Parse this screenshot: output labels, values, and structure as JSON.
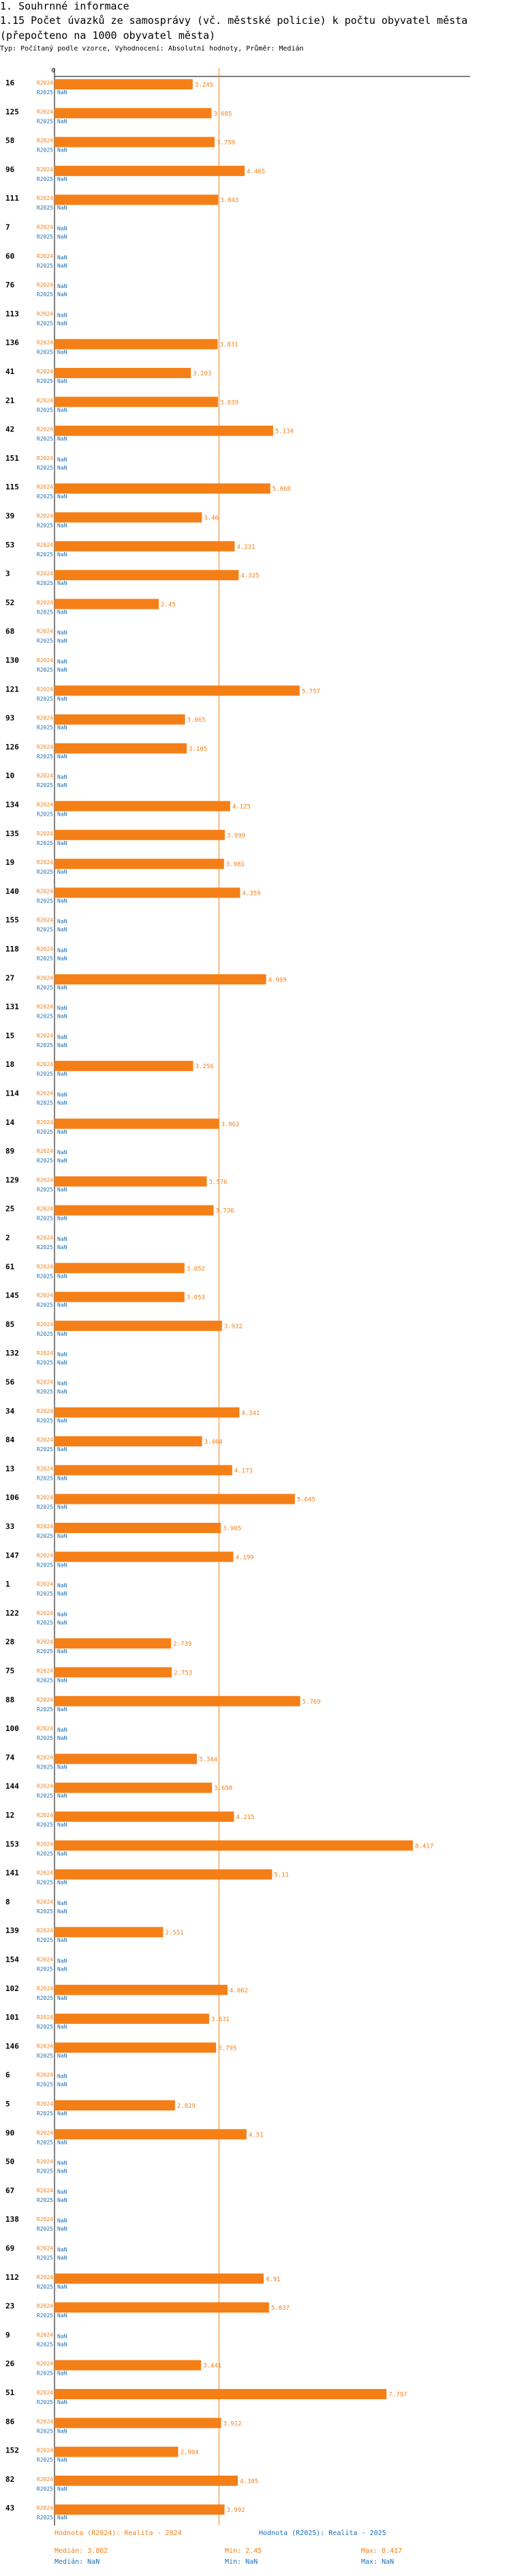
{
  "header": {
    "section": "1. Souhrnné informace",
    "title": "1.15 Počet úvazků ze samosprávy (vč. městské policie) k počtu obyvatel města (přepočteno na 1000 obyvatel města)",
    "subtitle": "Typ: Počítaný podle vzorce, Vyhodnocení: Absolutní hodnoty, Průměr: Medián"
  },
  "colors": {
    "bar": "#f57f17",
    "nan": "#1f6fb5",
    "axis": "#000000",
    "median_line": "#f57f17"
  },
  "chart_data": {
    "type": "bar",
    "orientation": "horizontal",
    "series": [
      {
        "name": "R2024",
        "color": "#f57f17"
      },
      {
        "name": "R2025",
        "color": "#1f6fb5"
      }
    ],
    "series_labels": {
      "r2024": "R2024",
      "r2025": "R2025"
    },
    "nan_label": "NaN",
    "median_2024": 3.862,
    "xlim": [
      0,
      9.6
    ],
    "rows": [
      {
        "id": "16",
        "v2024": 3.245
      },
      {
        "id": "125",
        "v2024": 3.685
      },
      {
        "id": "58",
        "v2024": 3.759
      },
      {
        "id": "96",
        "v2024": 4.465
      },
      {
        "id": "111",
        "v2024": 3.843
      },
      {
        "id": "7",
        "v2024": null
      },
      {
        "id": "60",
        "v2024": null
      },
      {
        "id": "76",
        "v2024": null
      },
      {
        "id": "113",
        "v2024": null
      },
      {
        "id": "136",
        "v2024": 3.831
      },
      {
        "id": "41",
        "v2024": 3.203
      },
      {
        "id": "21",
        "v2024": 3.839
      },
      {
        "id": "42",
        "v2024": 5.134
      },
      {
        "id": "151",
        "v2024": null
      },
      {
        "id": "115",
        "v2024": 5.068
      },
      {
        "id": "39",
        "v2024": 3.46
      },
      {
        "id": "53",
        "v2024": 4.231
      },
      {
        "id": "3",
        "v2024": 4.325
      },
      {
        "id": "52",
        "v2024": 2.45
      },
      {
        "id": "68",
        "v2024": null
      },
      {
        "id": "130",
        "v2024": null
      },
      {
        "id": "121",
        "v2024": 5.757
      },
      {
        "id": "93",
        "v2024": 3.065
      },
      {
        "id": "126",
        "v2024": 3.105
      },
      {
        "id": "10",
        "v2024": null
      },
      {
        "id": "134",
        "v2024": 4.125
      },
      {
        "id": "135",
        "v2024": 3.999
      },
      {
        "id": "19",
        "v2024": 3.981
      },
      {
        "id": "140",
        "v2024": 4.359
      },
      {
        "id": "155",
        "v2024": null
      },
      {
        "id": "118",
        "v2024": null
      },
      {
        "id": "27",
        "v2024": 4.969
      },
      {
        "id": "131",
        "v2024": null
      },
      {
        "id": "15",
        "v2024": null
      },
      {
        "id": "18",
        "v2024": 3.256
      },
      {
        "id": "114",
        "v2024": null
      },
      {
        "id": "14",
        "v2024": 3.862
      },
      {
        "id": "89",
        "v2024": null
      },
      {
        "id": "129",
        "v2024": 3.576
      },
      {
        "id": "25",
        "v2024": 3.736
      },
      {
        "id": "2",
        "v2024": null
      },
      {
        "id": "61",
        "v2024": 3.052
      },
      {
        "id": "145",
        "v2024": 3.053
      },
      {
        "id": "85",
        "v2024": 3.932
      },
      {
        "id": "132",
        "v2024": null
      },
      {
        "id": "56",
        "v2024": null
      },
      {
        "id": "34",
        "v2024": 4.341
      },
      {
        "id": "84",
        "v2024": 3.464
      },
      {
        "id": "13",
        "v2024": 4.173
      },
      {
        "id": "106",
        "v2024": 5.645
      },
      {
        "id": "33",
        "v2024": 3.905
      },
      {
        "id": "147",
        "v2024": 4.199
      },
      {
        "id": "1",
        "v2024": null
      },
      {
        "id": "122",
        "v2024": null
      },
      {
        "id": "28",
        "v2024": 2.739
      },
      {
        "id": "75",
        "v2024": 2.753
      },
      {
        "id": "88",
        "v2024": 5.769
      },
      {
        "id": "100",
        "v2024": null
      },
      {
        "id": "74",
        "v2024": 3.344
      },
      {
        "id": "144",
        "v2024": 3.698
      },
      {
        "id": "12",
        "v2024": 4.215
      },
      {
        "id": "153",
        "v2024": 8.417
      },
      {
        "id": "141",
        "v2024": 5.11
      },
      {
        "id": "8",
        "v2024": null
      },
      {
        "id": "139",
        "v2024": 2.551
      },
      {
        "id": "154",
        "v2024": null
      },
      {
        "id": "102",
        "v2024": 4.062
      },
      {
        "id": "101",
        "v2024": 3.631
      },
      {
        "id": "146",
        "v2024": 3.795
      },
      {
        "id": "6",
        "v2024": null
      },
      {
        "id": "5",
        "v2024": 2.829
      },
      {
        "id": "90",
        "v2024": 4.51
      },
      {
        "id": "50",
        "v2024": null
      },
      {
        "id": "67",
        "v2024": null
      },
      {
        "id": "138",
        "v2024": null
      },
      {
        "id": "69",
        "v2024": null
      },
      {
        "id": "112",
        "v2024": 4.91
      },
      {
        "id": "23",
        "v2024": 5.037
      },
      {
        "id": "9",
        "v2024": null
      },
      {
        "id": "26",
        "v2024": 3.441
      },
      {
        "id": "51",
        "v2024": 7.797
      },
      {
        "id": "86",
        "v2024": 3.912
      },
      {
        "id": "152",
        "v2024": 2.904
      },
      {
        "id": "82",
        "v2024": 4.305
      },
      {
        "id": "43",
        "v2024": 3.992
      }
    ]
  },
  "footer": {
    "left_title": "Hodnota (R2024): Realita - 2024",
    "left_median": "Medián: 3.862",
    "left_min": "Min: 2.45",
    "left_max": "Max: 8.417",
    "right_title": "Hodnota (R2025): Realita - 2025",
    "right_median": "Medián: NaN",
    "right_min": "Min: NaN",
    "right_max": "Max: NaN"
  }
}
